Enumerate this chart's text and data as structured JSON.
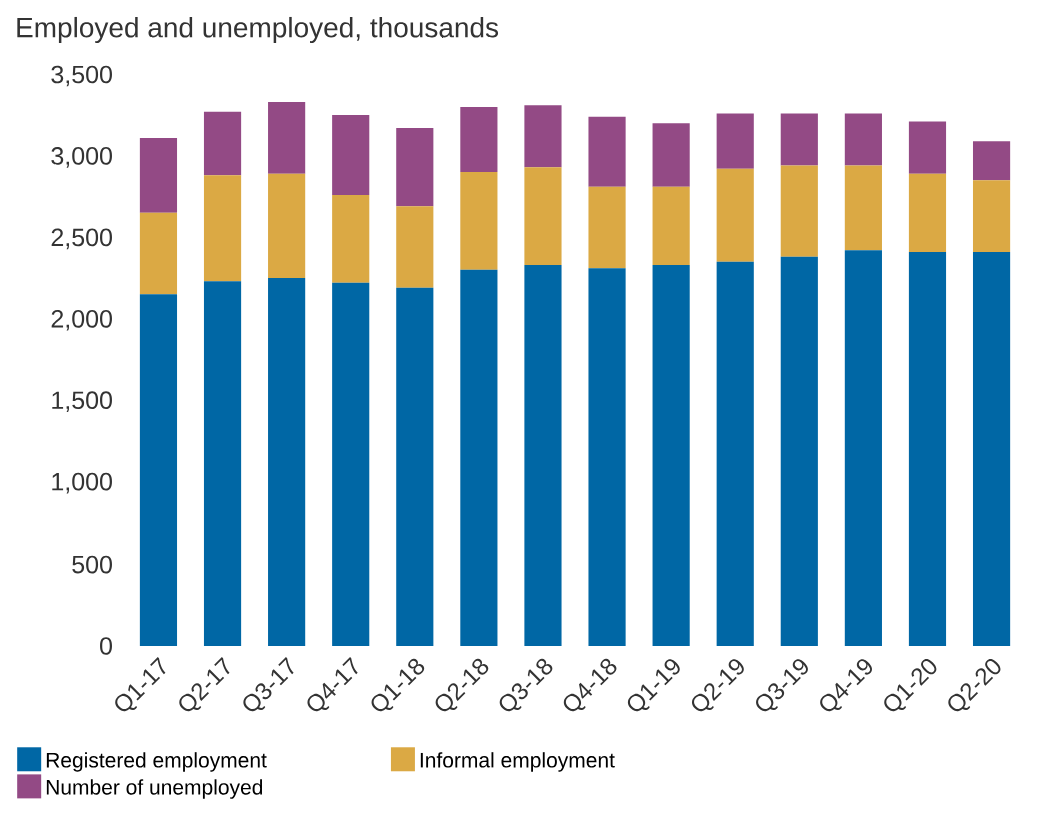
{
  "chart_data": {
    "type": "bar",
    "title": "Employed and unemployed, thousands",
    "stacked": true,
    "categories": [
      "Q1-17",
      "Q2-17",
      "Q3-17",
      "Q4-17",
      "Q1-18",
      "Q2-18",
      "Q3-18",
      "Q4-18",
      "Q1-19",
      "Q2-19",
      "Q3-19",
      "Q4-19",
      "Q1-20",
      "Q2-20"
    ],
    "series": [
      {
        "name": "Registered employment",
        "color": "#0067a5",
        "values": [
          2160,
          2240,
          2260,
          2230,
          2200,
          2310,
          2340,
          2320,
          2340,
          2360,
          2390,
          2430,
          2420,
          2420
        ]
      },
      {
        "name": "Informal employment",
        "color": "#dba944",
        "values": [
          500,
          650,
          640,
          540,
          500,
          600,
          600,
          500,
          480,
          570,
          560,
          520,
          480,
          440
        ]
      },
      {
        "name": "Number of unemployed",
        "color": "#934a85",
        "values": [
          460,
          390,
          440,
          490,
          480,
          400,
          380,
          430,
          390,
          340,
          320,
          320,
          320,
          240
        ]
      }
    ],
    "ylim": [
      0,
      3500
    ],
    "yticks": [
      0,
      500,
      {
        "value": 1000,
        "label": "1,000"
      },
      {
        "value": 1500,
        "label": "1,500"
      },
      {
        "value": 2000,
        "label": "2,000"
      },
      {
        "value": 2500,
        "label": "2,500"
      },
      {
        "value": 3000,
        "label": "3,000"
      },
      {
        "value": 3500,
        "label": "3,500"
      }
    ],
    "grid": false,
    "legend": "bottom"
  }
}
